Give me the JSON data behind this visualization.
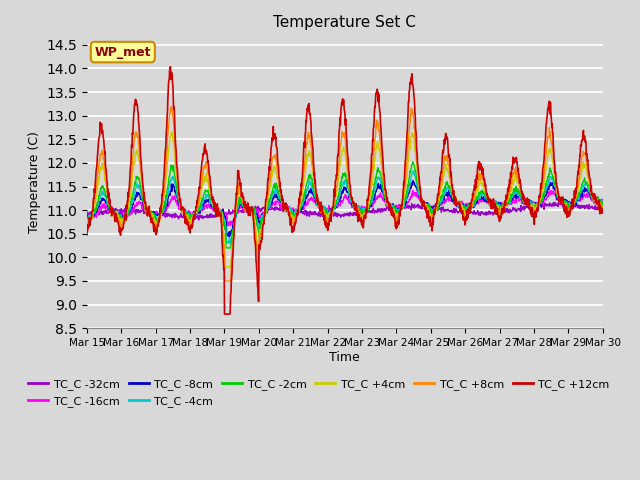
{
  "title": "Temperature Set C",
  "xlabel": "Time",
  "ylabel": "Temperature (C)",
  "ylim": [
    8.5,
    14.7
  ],
  "yticks": [
    8.5,
    9.0,
    9.5,
    10.0,
    10.5,
    11.0,
    11.5,
    12.0,
    12.5,
    13.0,
    13.5,
    14.0,
    14.5
  ],
  "background_color": "#d8d8d8",
  "plot_bg_color": "#d8d8d8",
  "legend_label": "WP_met",
  "series_colors": {
    "TC_C -32cm": "#9900cc",
    "TC_C -16cm": "#ff00ff",
    "TC_C -8cm": "#0000cc",
    "TC_C -4cm": "#00cccc",
    "TC_C -2cm": "#00cc00",
    "TC_C +4cm": "#cccc00",
    "TC_C +8cm": "#ff8800",
    "TC_C +12cm": "#cc0000"
  },
  "tick_labels": [
    "Mar 15",
    "Mar 16",
    "Mar 17",
    "Mar 18",
    "Mar 19",
    "Mar 20",
    "Mar 21",
    "Mar 22",
    "Mar 23",
    "Mar 24",
    "Mar 25",
    "Mar 26",
    "Mar 27",
    "Mar 28",
    "Mar 29",
    "Mar 30"
  ]
}
